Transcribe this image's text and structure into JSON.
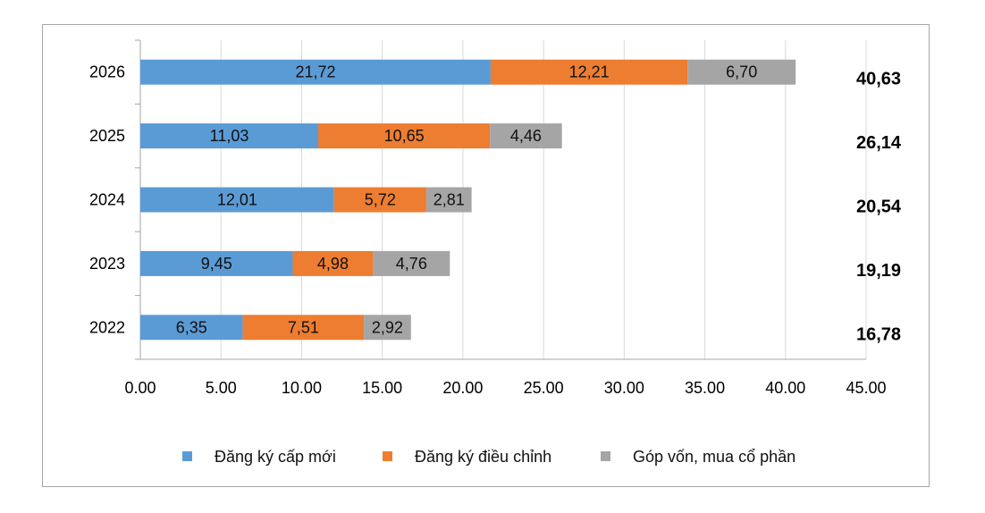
{
  "chart_data": {
    "type": "bar",
    "orientation": "horizontal",
    "stacked": true,
    "categories": [
      "2022",
      "2023",
      "2024",
      "2025",
      "2026"
    ],
    "series": [
      {
        "name": "Đăng ký cấp mới",
        "color": "#5b9bd5",
        "values": [
          6.35,
          9.45,
          12.01,
          11.03,
          21.72
        ],
        "labels": [
          "6,35",
          "9,45",
          "12,01",
          "11,03",
          "21,72"
        ]
      },
      {
        "name": "Đăng ký điều chỉnh",
        "color": "#ed7d31",
        "values": [
          7.51,
          4.98,
          5.72,
          10.65,
          12.21
        ],
        "labels": [
          "7,51",
          "4,98",
          "5,72",
          "10,65",
          "12,21"
        ]
      },
      {
        "name": "Góp vốn, mua cổ phần",
        "color": "#a5a5a5",
        "values": [
          2.92,
          4.76,
          2.81,
          4.46,
          6.7
        ],
        "labels": [
          "2,92",
          "4,76",
          "2,81",
          "4,46",
          "6,70"
        ]
      }
    ],
    "totals": [
      "16,78",
      "19,19",
      "20,54",
      "26,14",
      "40,63"
    ],
    "xlim": [
      0,
      45
    ],
    "xticks": [
      "0.00",
      "5.00",
      "10.00",
      "15.00",
      "20.00",
      "25.00",
      "30.00",
      "35.00",
      "40.00",
      "45.00"
    ],
    "grid": "vertical",
    "legend_position": "bottom"
  }
}
